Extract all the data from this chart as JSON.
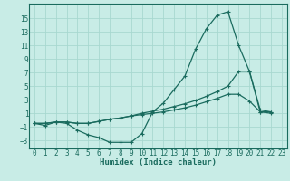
{
  "xlabel": "Humidex (Indice chaleur)",
  "bg_color": "#c8ece6",
  "line_color": "#1a6b5e",
  "grid_color": "#a8d8d0",
  "xlim": [
    -0.5,
    23.5
  ],
  "ylim": [
    -4.2,
    17.2
  ],
  "yticks": [
    -3,
    -1,
    1,
    3,
    5,
    7,
    9,
    11,
    13,
    15
  ],
  "xticks": [
    0,
    1,
    2,
    3,
    4,
    5,
    6,
    7,
    8,
    9,
    10,
    11,
    12,
    13,
    14,
    15,
    16,
    17,
    18,
    19,
    20,
    21,
    22,
    23
  ],
  "line1_x": [
    0,
    1,
    2,
    3,
    4,
    5,
    6,
    7,
    8,
    9,
    10,
    11,
    12,
    13,
    14,
    15,
    16,
    17,
    18,
    19,
    20,
    21,
    22
  ],
  "line1_y": [
    -0.5,
    -0.8,
    -0.3,
    -0.5,
    -1.5,
    -2.2,
    -2.6,
    -3.3,
    -3.3,
    -3.3,
    -2.0,
    1.2,
    2.5,
    4.5,
    6.5,
    10.5,
    13.5,
    15.5,
    16.0,
    11.0,
    7.2,
    1.2,
    1.2
  ],
  "line2_x": [
    0,
    1,
    2,
    3,
    4,
    5,
    6,
    7,
    8,
    9,
    10,
    11,
    12,
    13,
    14,
    15,
    16,
    17,
    18,
    19,
    20,
    21,
    22
  ],
  "line2_y": [
    -0.5,
    -0.5,
    -0.3,
    -0.3,
    -0.5,
    -0.5,
    -0.2,
    0.1,
    0.3,
    0.6,
    1.0,
    1.3,
    1.6,
    2.0,
    2.4,
    2.9,
    3.5,
    4.2,
    5.0,
    7.2,
    7.2,
    1.5,
    1.2
  ],
  "line3_x": [
    0,
    1,
    2,
    3,
    4,
    5,
    6,
    7,
    8,
    9,
    10,
    11,
    12,
    13,
    14,
    15,
    16,
    17,
    18,
    19,
    20,
    21,
    22
  ],
  "line3_y": [
    -0.5,
    -0.5,
    -0.3,
    -0.3,
    -0.5,
    -0.5,
    -0.2,
    0.1,
    0.3,
    0.6,
    0.8,
    1.0,
    1.2,
    1.5,
    1.8,
    2.2,
    2.7,
    3.2,
    3.8,
    3.8,
    2.8,
    1.2,
    1.0
  ]
}
